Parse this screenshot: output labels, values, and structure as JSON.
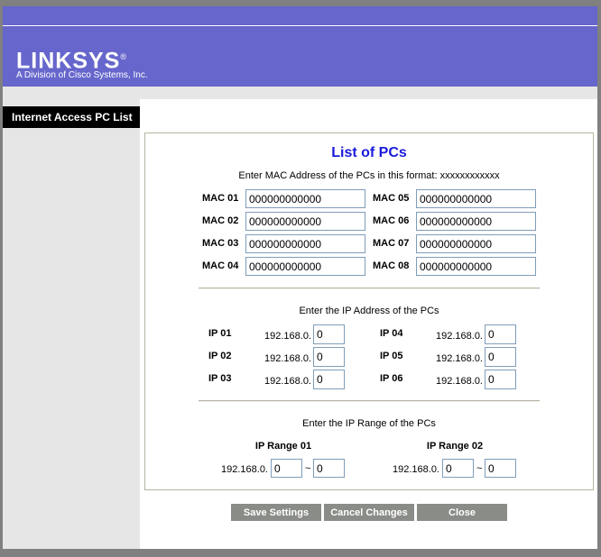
{
  "brand": {
    "logo": "LINKSYS",
    "registered": "®",
    "tagline": "A Division of Cisco Systems, Inc."
  },
  "sidebar": {
    "tab": "Internet Access PC List"
  },
  "title": "List of PCs",
  "mac": {
    "instruction": "Enter MAC Address of the PCs in this format: xxxxxxxxxxxx",
    "entries": [
      {
        "label": "MAC 01",
        "value": "000000000000"
      },
      {
        "label": "MAC 02",
        "value": "000000000000"
      },
      {
        "label": "MAC 03",
        "value": "000000000000"
      },
      {
        "label": "MAC 04",
        "value": "000000000000"
      },
      {
        "label": "MAC 05",
        "value": "000000000000"
      },
      {
        "label": "MAC 06",
        "value": "000000000000"
      },
      {
        "label": "MAC 07",
        "value": "000000000000"
      },
      {
        "label": "MAC 08",
        "value": "000000000000"
      }
    ]
  },
  "ip": {
    "instruction": "Enter the IP Address of the PCs",
    "prefix": "192.168.0.",
    "entries": [
      {
        "label": "IP 01",
        "value": "0"
      },
      {
        "label": "IP 02",
        "value": "0"
      },
      {
        "label": "IP 03",
        "value": "0"
      },
      {
        "label": "IP 04",
        "value": "0"
      },
      {
        "label": "IP 05",
        "value": "0"
      },
      {
        "label": "IP 06",
        "value": "0"
      }
    ]
  },
  "range": {
    "instruction": "Enter the IP Range of the PCs",
    "prefix": "192.168.0.",
    "separator": "~",
    "entries": [
      {
        "label": "IP Range 01",
        "start": "0",
        "end": "0"
      },
      {
        "label": "IP Range 02",
        "start": "0",
        "end": "0"
      }
    ]
  },
  "buttons": {
    "save": "Save Settings",
    "cancel": "Cancel Changes",
    "close": "Close"
  },
  "colors": {
    "header": "#6666cc",
    "title": "#1a1adc",
    "button": "#8a8c88"
  }
}
